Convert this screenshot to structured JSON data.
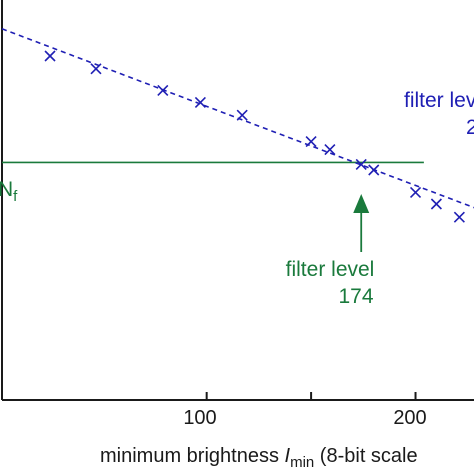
{
  "chart_data": {
    "type": "scatter",
    "x_ticks": [
      100,
      150,
      200,
      250
    ],
    "x_tick_labels": [
      "100",
      "200"
    ],
    "xlabel": {
      "prefix": "minimum brightness ",
      "var": "I",
      "sub": "min",
      "suffix": " (8-bit scale"
    },
    "x_range": [
      2,
      228
    ],
    "y_range": [
      0,
      1
    ],
    "series": [
      {
        "style": "x-markers",
        "color": "#1f1fb4",
        "x": [
          25,
          47,
          79,
          97,
          117,
          150,
          159,
          174,
          180,
          200,
          210,
          221
        ],
        "y": [
          0.86,
          0.828,
          0.774,
          0.744,
          0.712,
          0.646,
          0.626,
          0.589,
          0.575,
          0.519,
          0.49,
          0.457
        ]
      }
    ],
    "trendline": {
      "style": "dashed",
      "color": "#1f1fb4",
      "x": [
        2,
        228
      ],
      "y": [
        0.928,
        0.481
      ]
    },
    "threshold_line": {
      "color": "#1a7a3c",
      "y": 0.594,
      "x": [
        2,
        204
      ]
    },
    "threshold_label": {
      "prefix": "N",
      "sub": "f"
    },
    "annotations": [
      {
        "id": "filter-level-green",
        "line1": "filter level",
        "line2": "174",
        "color": "#1a7a3c",
        "arrow_to_x": 174
      },
      {
        "id": "filter-level-blue",
        "line1": "filter lev",
        "line2": "2",
        "color": "#1f1fb4"
      }
    ]
  }
}
